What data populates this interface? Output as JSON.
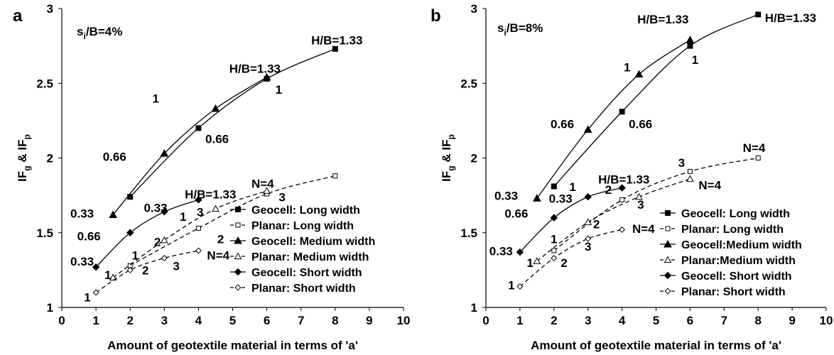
{
  "chart_data": [
    {
      "panel": "a",
      "type": "line",
      "condition": {
        "main": "s",
        "sub": "i",
        "rest": "/B=4%"
      },
      "xlabel": "Amount of geotextile material in terms of 'a'",
      "ylabel": {
        "p1": "IF",
        "s1": "g",
        "p2": " & IF",
        "s2": "p"
      },
      "xlim": [
        0,
        10
      ],
      "ylim": [
        1,
        3
      ],
      "xticks": [
        "0",
        "1",
        "2",
        "3",
        "4",
        "5",
        "6",
        "7",
        "8",
        "9",
        "10"
      ],
      "yticks": [
        "1",
        "1.5",
        "2",
        "2.5",
        "3"
      ],
      "grid": false,
      "legend_position": "bottom-right",
      "series": [
        {
          "name": "Geocell: Long width",
          "marker": "square-filled",
          "dash": false,
          "x": [
            2,
            4,
            6,
            8
          ],
          "y": [
            1.74,
            2.2,
            2.53,
            2.73
          ]
        },
        {
          "name": "Planar: Long width",
          "marker": "square-open",
          "dash": true,
          "x": [
            2,
            4,
            6,
            8
          ],
          "y": [
            1.28,
            1.53,
            1.76,
            1.88
          ]
        },
        {
          "name": "Geocell: Medium width",
          "marker": "triangle-filled",
          "dash": false,
          "x": [
            1.5,
            3,
            4.5,
            6
          ],
          "y": [
            1.62,
            2.03,
            2.33,
            2.54
          ]
        },
        {
          "name": "Planar: Medium width",
          "marker": "triangle-open",
          "dash": true,
          "x": [
            1.5,
            3,
            4.5,
            6
          ],
          "y": [
            1.2,
            1.45,
            1.66,
            1.78
          ]
        },
        {
          "name": "Geocell: Short width",
          "marker": "diamond-filled",
          "dash": false,
          "x": [
            1,
            2,
            3,
            4
          ],
          "y": [
            1.27,
            1.5,
            1.64,
            1.72
          ]
        },
        {
          "name": "Planar: Short width",
          "marker": "diamond-open",
          "dash": true,
          "x": [
            1,
            2,
            3,
            4
          ],
          "y": [
            1.1,
            1.25,
            1.33,
            1.38
          ]
        }
      ],
      "annotations": [
        {
          "text": "H/B=1.33",
          "x": 7.3,
          "y": 2.76
        },
        {
          "text": "H/B=1.33",
          "x": 4.9,
          "y": 2.57
        },
        {
          "text": "1",
          "x": 6.25,
          "y": 2.43
        },
        {
          "text": "1",
          "x": 2.65,
          "y": 2.37
        },
        {
          "text": "0.66",
          "x": 1.2,
          "y": 1.98
        },
        {
          "text": "0.66",
          "x": 4.2,
          "y": 2.1
        },
        {
          "text": "0.33",
          "x": 0.25,
          "y": 1.6
        },
        {
          "text": "0.33",
          "x": 2.4,
          "y": 1.64
        },
        {
          "text": "H/B=1.33",
          "x": 3.6,
          "y": 1.73
        },
        {
          "text": "0.66",
          "x": 0.45,
          "y": 1.45
        },
        {
          "text": "0.33",
          "x": 0.25,
          "y": 1.28
        },
        {
          "text": "1",
          "x": 2.05,
          "y": 1.32
        },
        {
          "text": "1",
          "x": 1.25,
          "y": 1.19
        },
        {
          "text": "1",
          "x": 0.65,
          "y": 1.04
        },
        {
          "text": "2",
          "x": 2.7,
          "y": 1.41
        },
        {
          "text": "2",
          "x": 2.35,
          "y": 1.22
        },
        {
          "text": "3",
          "x": 3.95,
          "y": 1.61
        },
        {
          "text": "1",
          "x": 3.45,
          "y": 1.58
        },
        {
          "text": "2",
          "x": 4.55,
          "y": 1.43
        },
        {
          "text": "3",
          "x": 6.35,
          "y": 1.71
        },
        {
          "text": "N=4",
          "x": 5.55,
          "y": 1.8
        },
        {
          "text": "3",
          "x": 3.25,
          "y": 1.25
        },
        {
          "text": "N=4",
          "x": 4.25,
          "y": 1.32
        }
      ]
    },
    {
      "panel": "b",
      "type": "line",
      "condition": {
        "main": "s",
        "sub": "i",
        "rest": "/B=8%"
      },
      "xlabel": "Amount of geotextile material in terms of  'a'",
      "ylabel": {
        "p1": "IF",
        "s1": "g",
        "p2": " & IF",
        "s2": "p"
      },
      "xlim": [
        0,
        10
      ],
      "ylim": [
        1,
        3
      ],
      "xticks": [
        "0",
        "1",
        "2",
        "3",
        "4",
        "5",
        "6",
        "7",
        "8",
        "9",
        "10"
      ],
      "yticks": [
        "1",
        "1.5",
        "2",
        "2.5",
        "3"
      ],
      "grid": false,
      "legend_position": "bottom-right",
      "series": [
        {
          "name": "Geocell: Long width",
          "marker": "square-filled",
          "dash": false,
          "x": [
            2,
            4,
            6,
            8
          ],
          "y": [
            1.81,
            2.31,
            2.75,
            2.96
          ]
        },
        {
          "name": "Planar: Long width",
          "marker": "square-open",
          "dash": true,
          "x": [
            2,
            4,
            6,
            8
          ],
          "y": [
            1.38,
            1.72,
            1.91,
            2.0
          ]
        },
        {
          "name": "Geocell:Medium width",
          "marker": "triangle-filled",
          "dash": false,
          "x": [
            1.5,
            3,
            4.5,
            6
          ],
          "y": [
            1.73,
            2.19,
            2.56,
            2.79
          ]
        },
        {
          "name": "Planar:Medium width",
          "marker": "triangle-open",
          "dash": true,
          "x": [
            1.5,
            3,
            4.5,
            6
          ],
          "y": [
            1.31,
            1.57,
            1.74,
            1.86
          ]
        },
        {
          "name": "Geocell: Short width",
          "marker": "diamond-filled",
          "dash": false,
          "x": [
            1,
            2,
            3,
            4
          ],
          "y": [
            1.37,
            1.6,
            1.74,
            1.8
          ]
        },
        {
          "name": "Planar: Short width",
          "marker": "diamond-open",
          "dash": true,
          "x": [
            1,
            2,
            3,
            4
          ],
          "y": [
            1.14,
            1.33,
            1.46,
            1.52
          ]
        }
      ],
      "annotations": [
        {
          "text": "H/B=1.33",
          "x": 4.45,
          "y": 2.9
        },
        {
          "text": "H/B=1.33",
          "x": 8.2,
          "y": 2.91
        },
        {
          "text": "1",
          "x": 4.05,
          "y": 2.58
        },
        {
          "text": "1",
          "x": 6.05,
          "y": 2.63
        },
        {
          "text": "0.66",
          "x": 1.9,
          "y": 2.2
        },
        {
          "text": "0.66",
          "x": 4.2,
          "y": 2.2
        },
        {
          "text": "0.33",
          "x": 0.25,
          "y": 1.72
        },
        {
          "text": "0.33",
          "x": 1.85,
          "y": 1.7
        },
        {
          "text": "H/B=1.33",
          "x": 3.3,
          "y": 1.83
        },
        {
          "text": "0.66",
          "x": 0.55,
          "y": 1.6
        },
        {
          "text": "1",
          "x": 2.45,
          "y": 1.78
        },
        {
          "text": "2",
          "x": 3.5,
          "y": 1.76
        },
        {
          "text": "3",
          "x": 4.45,
          "y": 1.66
        },
        {
          "text": "3",
          "x": 5.65,
          "y": 1.94
        },
        {
          "text": "N=4",
          "x": 7.55,
          "y": 2.04
        },
        {
          "text": "N=4",
          "x": 6.25,
          "y": 1.79
        },
        {
          "text": "0.33",
          "x": 0.1,
          "y": 1.35
        },
        {
          "text": "1",
          "x": 1.9,
          "y": 1.43
        },
        {
          "text": "1",
          "x": 1.2,
          "y": 1.27
        },
        {
          "text": "1",
          "x": 0.65,
          "y": 1.12
        },
        {
          "text": "2",
          "x": 3.15,
          "y": 1.53
        },
        {
          "text": "2",
          "x": 2.2,
          "y": 1.27
        },
        {
          "text": "3",
          "x": 2.9,
          "y": 1.38
        },
        {
          "text": "N=4",
          "x": 4.3,
          "y": 1.5
        }
      ]
    }
  ]
}
